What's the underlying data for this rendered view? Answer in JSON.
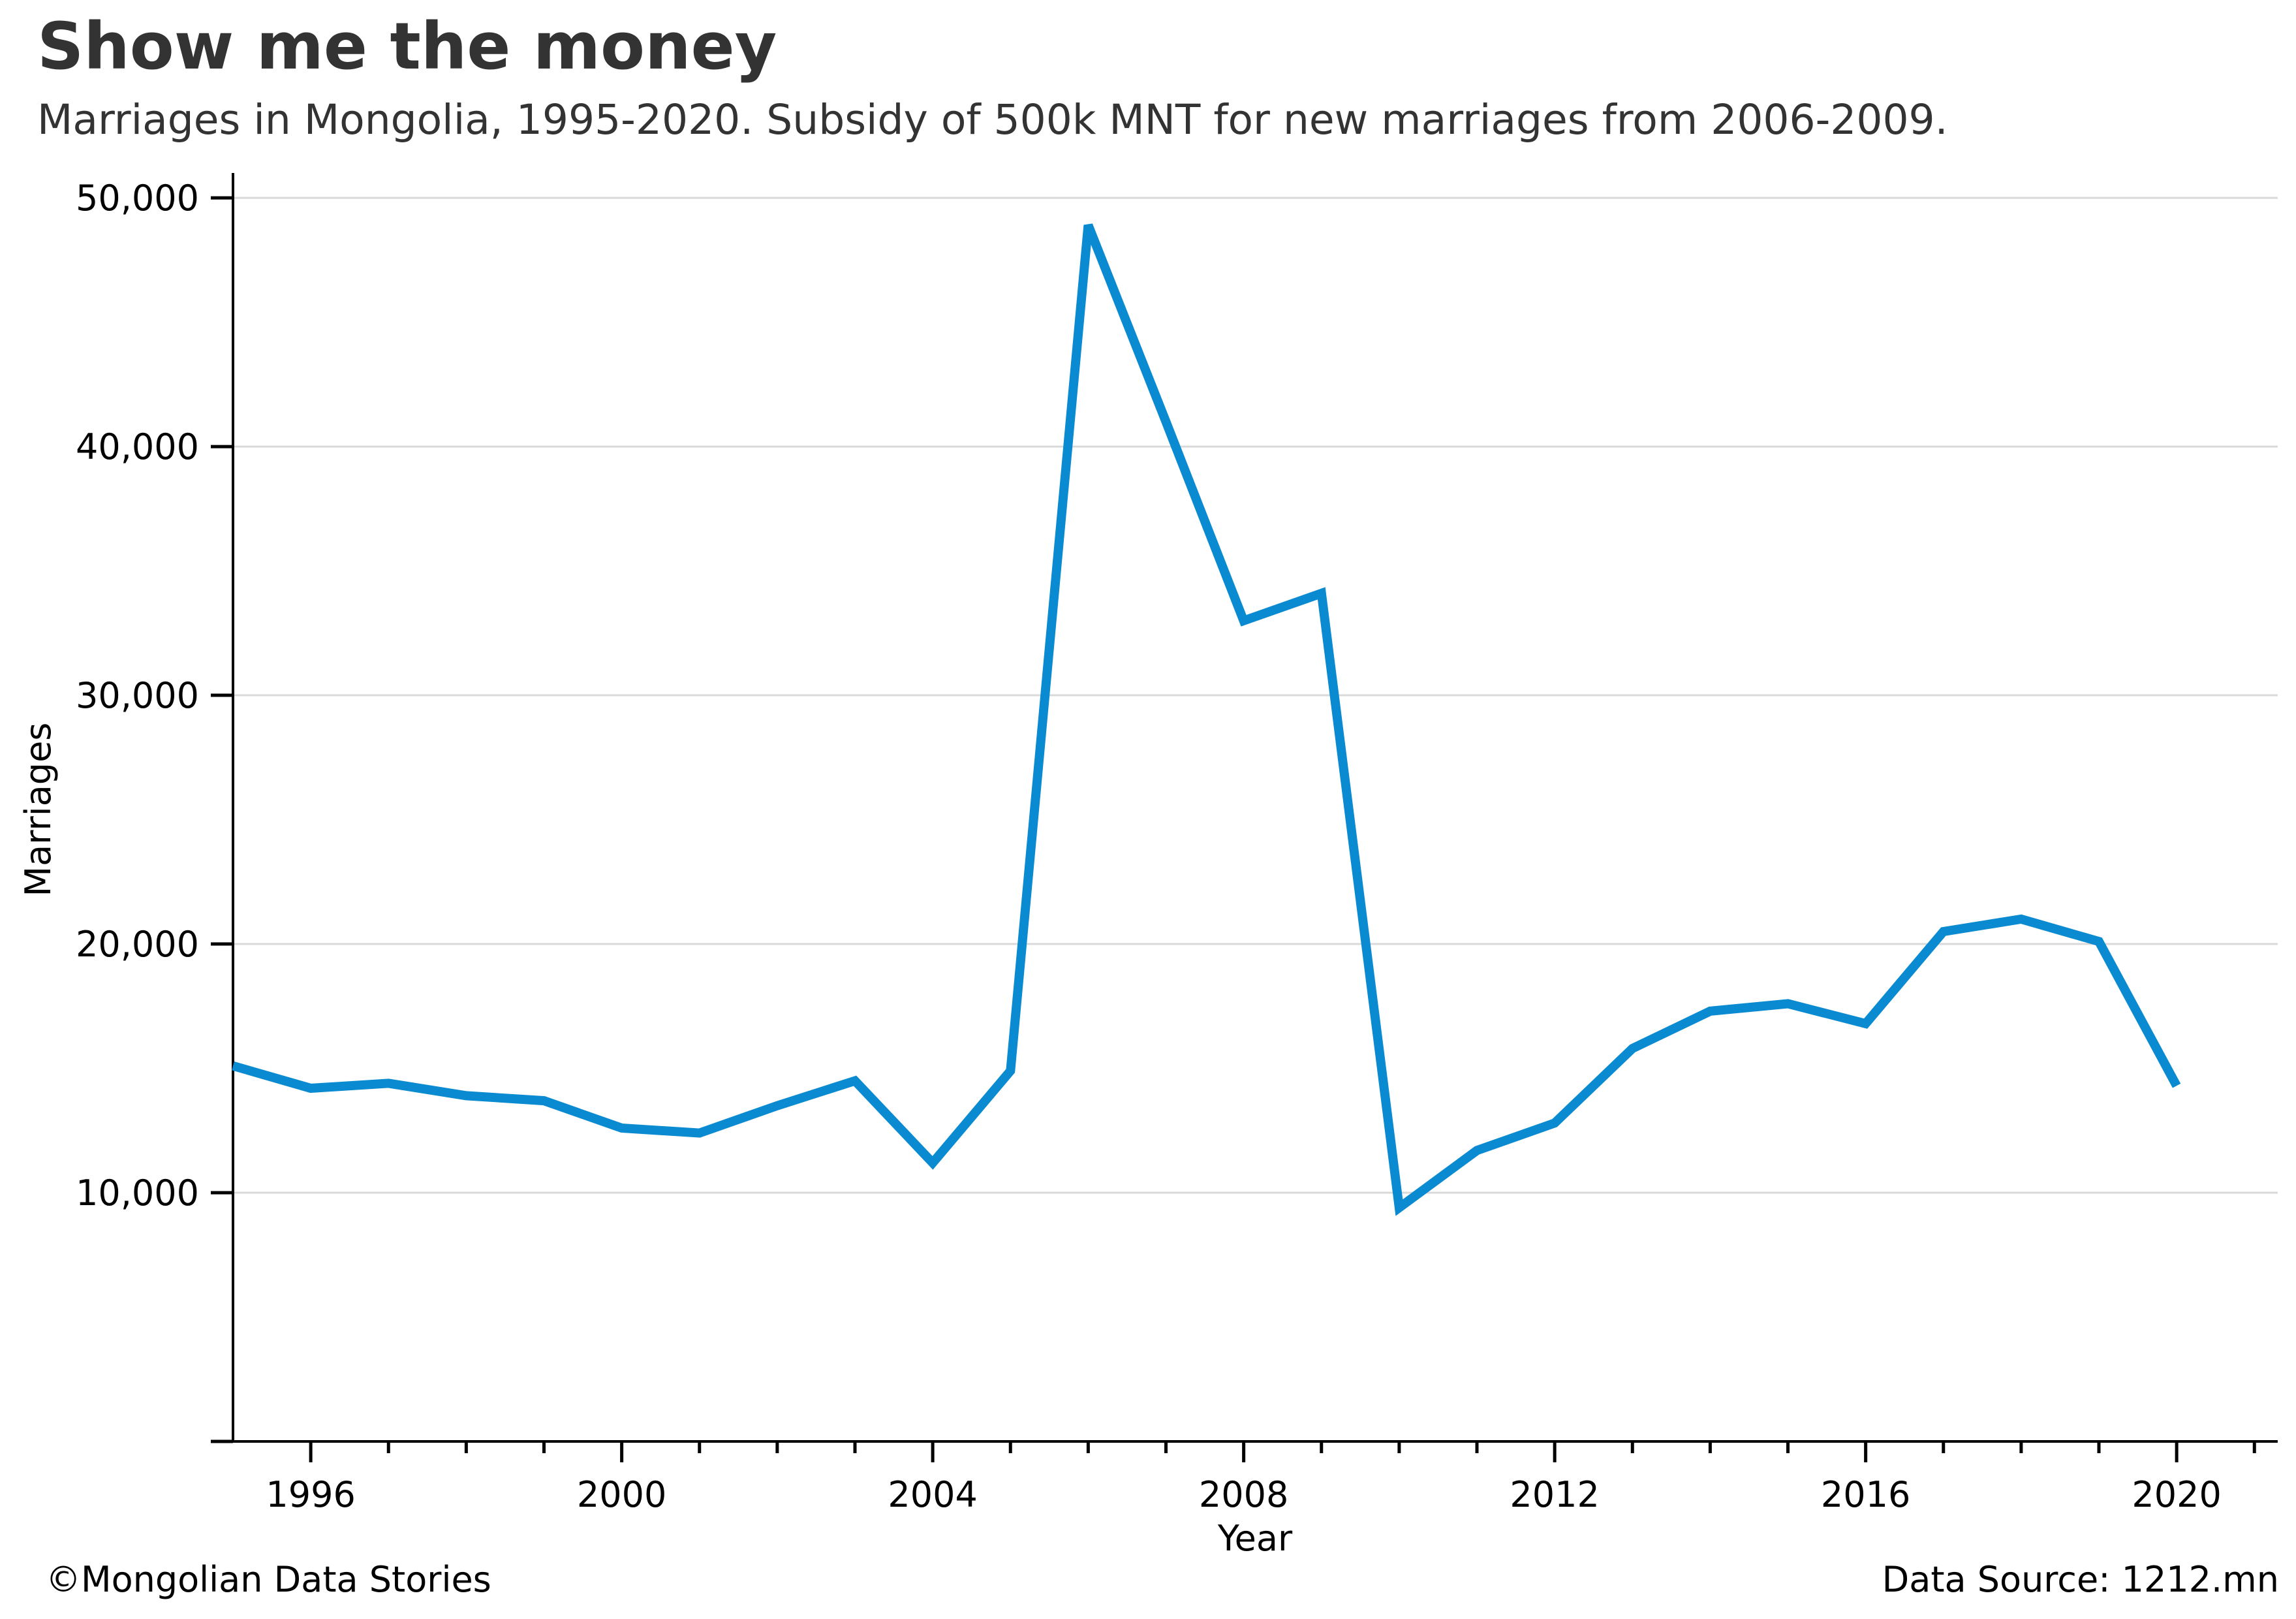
{
  "title": "Show me the money",
  "subtitle": "Marriages in Mongolia, 1995-2020. Subsidy of 500k MNT for new marriages from 2006-2009.",
  "footer": {
    "credit": "©Mongolian Data Stories",
    "source": "Data Source: 1212.mn"
  },
  "colors": {
    "series": "#0a8bd1",
    "title": "#333333",
    "grid": "#d9d9d9"
  },
  "chart_data": {
    "type": "line",
    "xlabel": "Year",
    "ylabel": "Marriages",
    "xlim": [
      1995,
      2021.3
    ],
    "ylim": [
      0,
      51000
    ],
    "grid": "horizontal",
    "x_ticks_major": [
      1996,
      2000,
      2004,
      2008,
      2012,
      2016,
      2020
    ],
    "x_tick_labels": [
      "1996",
      "2000",
      "2004",
      "2008",
      "2012",
      "2016",
      "2020"
    ],
    "x_ticks_minor": [
      1997,
      1998,
      1999,
      2001,
      2002,
      2003,
      2005,
      2006,
      2007,
      2009,
      2010,
      2011,
      2013,
      2014,
      2015,
      2017,
      2018,
      2019,
      2021
    ],
    "y_ticks": [
      0,
      10000,
      20000,
      30000,
      40000,
      50000
    ],
    "y_tick_labels": [
      "",
      "10,000",
      "20,000",
      "30,000",
      "40,000",
      "50,000"
    ],
    "x": [
      1995,
      1996,
      1997,
      1998,
      1999,
      2000,
      2001,
      2002,
      2003,
      2004,
      2005,
      2006,
      2007,
      2008,
      2009,
      2010,
      2011,
      2012,
      2013,
      2014,
      2015,
      2016,
      2017,
      2018,
      2019,
      2020
    ],
    "series": [
      {
        "values": [
          15100,
          14200,
          14400,
          13900,
          13700,
          12600,
          12400,
          13500,
          14500,
          11200,
          14900,
          48900,
          41000,
          33000,
          34100,
          9400,
          11700,
          12800,
          15800,
          17300,
          17600,
          16800,
          20500,
          21000,
          20100,
          14300
        ]
      }
    ]
  }
}
